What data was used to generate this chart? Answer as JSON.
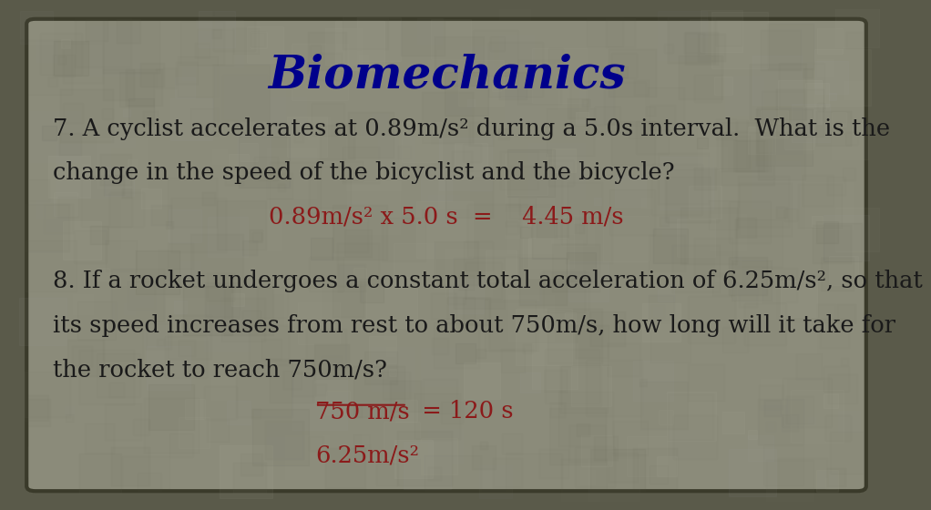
{
  "title": "Biomechanics",
  "title_color": "#00008B",
  "title_fontsize": 36,
  "title_font": "serif",
  "bg_outer": "#5a5a4a",
  "bg_inner": "#8B8B7A",
  "text_color_dark": "#1a1a1a",
  "text_color_red": "#8B1A1A",
  "body_fontsize": 18.5,
  "body_font": "serif",
  "q7_line1": "7. A cyclist accelerates at 0.89m/s² during a 5.0s interval.  What is the",
  "q7_line2": "change in the speed of the bicyclist and the bicycle?",
  "q7_answer": "0.89m/s² x 5.0 s  =    4.45 m/s",
  "q8_line1": "8. If a rocket undergoes a constant total acceleration of 6.25m/s², so that",
  "q8_line2": "its speed increases from rest to about 750m/s, how long will it take for",
  "q8_line3": "the rocket to reach 750m/s?",
  "q8_answer1_underline": "750 m/s",
  "q8_answer1_rest": "  = 120 s",
  "q8_answer2": "6.25m/s²",
  "border_color": "#3a3a2a"
}
